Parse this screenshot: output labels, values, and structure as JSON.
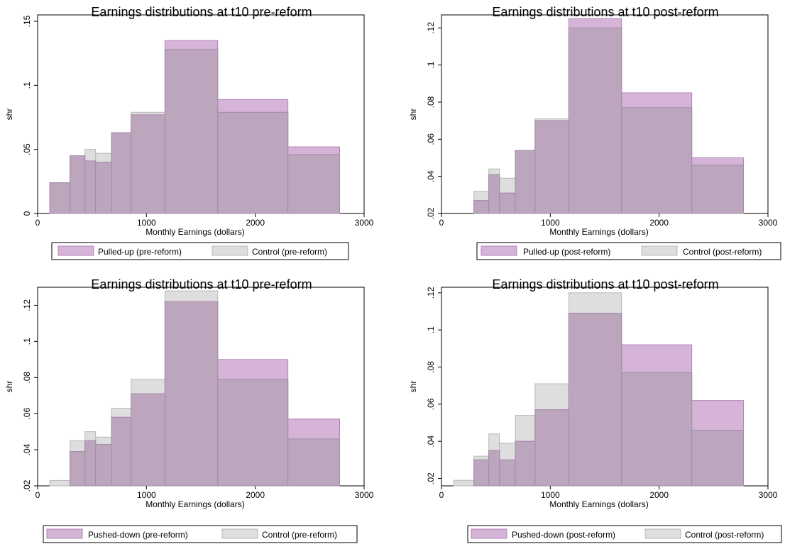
{
  "chart_data": [
    {
      "type": "bar",
      "title": "Earnings distributions at t10 pre-reform",
      "xlabel": "Monthly Earnings (dollars)",
      "ylabel": "shr",
      "xlim": [
        0,
        3000
      ],
      "ylim": [
        0,
        0.155
      ],
      "xticks": [
        0,
        1000,
        2000,
        3000
      ],
      "xtick_labels": [
        "0",
        "1000",
        "2000",
        "3000"
      ],
      "yticks": [
        0,
        0.05,
        0.1,
        0.15
      ],
      "ytick_labels": [
        "0",
        ".05",
        ".1",
        ".15"
      ],
      "bin_edges": [
        112,
        298,
        435,
        533,
        679,
        860,
        1170,
        1655,
        2300,
        2775
      ],
      "series": [
        {
          "name": "Pulled-up (pre-reform)",
          "values": [
            0.024,
            0.045,
            0.041,
            0.04,
            0.063,
            0.077,
            0.135,
            0.089,
            0.052
          ]
        },
        {
          "name": "Control (pre-reform)",
          "values": [
            0.024,
            0.045,
            0.05,
            0.047,
            0.063,
            0.079,
            0.128,
            0.079,
            0.046
          ]
        }
      ],
      "colors": {
        "treat": "#d5b4d8",
        "treat_edge": "#b383b8",
        "control": "#dedede",
        "control_edge": "#b8b8b8",
        "overlap": "#bba6bd"
      },
      "legend": "bottom"
    },
    {
      "type": "bar",
      "title": "Earnings distributions at t10 post-reform",
      "xlabel": "Monthly Earnings (dollars)",
      "ylabel": "shr",
      "xlim": [
        0,
        3000
      ],
      "ylim": [
        0.02,
        0.127
      ],
      "xticks": [
        0,
        1000,
        2000,
        3000
      ],
      "xtick_labels": [
        "0",
        "1000",
        "2000",
        "3000"
      ],
      "yticks": [
        0.02,
        0.04,
        0.06,
        0.08,
        0.1,
        0.12
      ],
      "ytick_labels": [
        ".02",
        ".04",
        ".06",
        ".08",
        ".1",
        ".12"
      ],
      "bin_edges": [
        112,
        298,
        435,
        533,
        679,
        860,
        1170,
        1655,
        2300,
        2775
      ],
      "series": [
        {
          "name": "Pulled-up (post-reform)",
          "values": [
            0.02,
            0.027,
            0.041,
            0.031,
            0.054,
            0.07,
            0.125,
            0.085,
            0.05
          ]
        },
        {
          "name": "Control (post-reform)",
          "values": [
            0.02,
            0.032,
            0.044,
            0.039,
            0.054,
            0.071,
            0.12,
            0.077,
            0.046
          ]
        }
      ],
      "colors": {
        "treat": "#d5b4d8",
        "treat_edge": "#b383b8",
        "control": "#dedede",
        "control_edge": "#b8b8b8",
        "overlap": "#bba6bd"
      },
      "legend": "bottom"
    },
    {
      "type": "bar",
      "title": "Earnings distributions at t10 pre-reform",
      "xlabel": "Monthly Earnings (dollars)",
      "ylabel": "shr",
      "xlim": [
        0,
        3000
      ],
      "ylim": [
        0.02,
        0.13
      ],
      "xticks": [
        0,
        1000,
        2000,
        3000
      ],
      "xtick_labels": [
        "0",
        "1000",
        "2000",
        "3000"
      ],
      "yticks": [
        0.02,
        0.04,
        0.06,
        0.08,
        0.1,
        0.12
      ],
      "ytick_labels": [
        ".02",
        ".04",
        ".06",
        ".08",
        ".1",
        ".12"
      ],
      "bin_edges": [
        112,
        298,
        435,
        533,
        679,
        860,
        1170,
        1655,
        2300,
        2775
      ],
      "series": [
        {
          "name": "Pushed-down (pre-reform)",
          "values": [
            0.02,
            0.039,
            0.045,
            0.043,
            0.058,
            0.071,
            0.122,
            0.09,
            0.057
          ]
        },
        {
          "name": "Control (pre-reform)",
          "values": [
            0.023,
            0.045,
            0.05,
            0.047,
            0.063,
            0.079,
            0.128,
            0.079,
            0.046
          ]
        }
      ],
      "colors": {
        "treat": "#d5b4d8",
        "treat_edge": "#b383b8",
        "control": "#dedede",
        "control_edge": "#b8b8b8",
        "overlap": "#bba6bd"
      },
      "legend": "bottom"
    },
    {
      "type": "bar",
      "title": "Earnings distributions at t10 post-reform",
      "xlabel": "Monthly Earnings (dollars)",
      "ylabel": "shr",
      "xlim": [
        0,
        3000
      ],
      "ylim": [
        0.016,
        0.123
      ],
      "xticks": [
        0,
        1000,
        2000,
        3000
      ],
      "xtick_labels": [
        "0",
        "1000",
        "2000",
        "3000"
      ],
      "yticks": [
        0.02,
        0.04,
        0.06,
        0.08,
        0.1,
        0.12
      ],
      "ytick_labels": [
        ".02",
        ".04",
        ".06",
        ".08",
        ".1",
        ".12"
      ],
      "bin_edges": [
        112,
        298,
        435,
        533,
        679,
        860,
        1170,
        1655,
        2300,
        2775
      ],
      "series": [
        {
          "name": "Pushed-down (post-reform)",
          "values": [
            0.016,
            0.03,
            0.035,
            0.03,
            0.04,
            0.057,
            0.109,
            0.092,
            0.062
          ]
        },
        {
          "name": "Control (post-reform)",
          "values": [
            0.019,
            0.032,
            0.044,
            0.039,
            0.054,
            0.071,
            0.12,
            0.077,
            0.046
          ]
        }
      ],
      "colors": {
        "treat": "#d5b4d8",
        "treat_edge": "#b383b8",
        "control": "#dedede",
        "control_edge": "#b8b8b8",
        "overlap": "#bba6bd"
      },
      "legend": "bottom"
    }
  ]
}
